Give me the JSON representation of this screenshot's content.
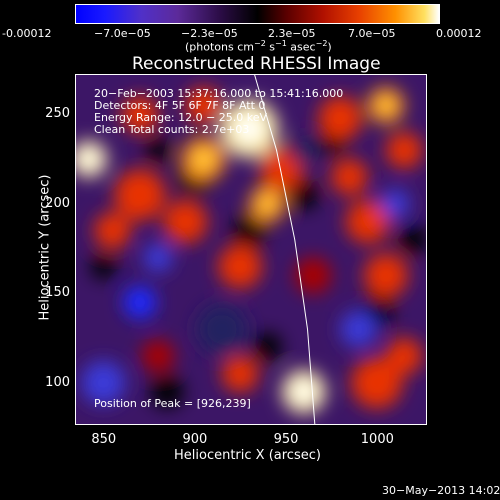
{
  "colorbar": {
    "ticks": [
      "-0.00012",
      "−7.0e−05",
      "−2.3e−05",
      "2.3e−05",
      "7.0e−05",
      "0.00012"
    ],
    "unit_prefix": "(photons cm",
    "unit_exp1": "−2",
    "unit_mid": " s",
    "unit_exp2": "−1",
    "unit_mid2": " asec",
    "unit_exp3": "−2",
    "unit_suffix": ")"
  },
  "chart_data": {
    "type": "heatmap",
    "title": "Reconstructed RHESSI Image",
    "xlabel": "Heliocentric X (arcsec)",
    "ylabel": "Heliocentric Y (arcsec)",
    "xlim": [
      835,
      1027
    ],
    "ylim": [
      77,
      272
    ],
    "x_ticks": [
      850,
      900,
      950,
      1000
    ],
    "y_ticks": [
      100,
      150,
      200,
      250
    ],
    "color_range": [
      -0.00012,
      0.00012
    ],
    "limb_curve": [
      [
        933,
        272
      ],
      [
        945,
        230
      ],
      [
        955,
        180
      ],
      [
        962,
        130
      ],
      [
        966,
        77
      ]
    ],
    "peak": [
      926,
      239
    ],
    "blobs": [
      {
        "x": 930,
        "y": 242,
        "r": 16,
        "v": 1.0
      },
      {
        "x": 842,
        "y": 225,
        "r": 10,
        "v": 0.95
      },
      {
        "x": 905,
        "y": 225,
        "r": 12,
        "v": 0.8
      },
      {
        "x": 870,
        "y": 205,
        "r": 14,
        "v": 0.55
      },
      {
        "x": 895,
        "y": 190,
        "r": 12,
        "v": 0.6
      },
      {
        "x": 948,
        "y": 220,
        "r": 12,
        "v": 0.55
      },
      {
        "x": 940,
        "y": 200,
        "r": 10,
        "v": 0.7
      },
      {
        "x": 980,
        "y": 248,
        "r": 12,
        "v": 0.6
      },
      {
        "x": 1005,
        "y": 255,
        "r": 10,
        "v": 0.75
      },
      {
        "x": 985,
        "y": 215,
        "r": 10,
        "v": 0.5
      },
      {
        "x": 995,
        "y": 190,
        "r": 12,
        "v": 0.55
      },
      {
        "x": 1015,
        "y": 230,
        "r": 10,
        "v": 0.5
      },
      {
        "x": 870,
        "y": 250,
        "r": 10,
        "v": 0.55
      },
      {
        "x": 905,
        "y": 255,
        "r": 10,
        "v": 0.5
      },
      {
        "x": 855,
        "y": 185,
        "r": 10,
        "v": 0.5
      },
      {
        "x": 925,
        "y": 165,
        "r": 12,
        "v": 0.5
      },
      {
        "x": 965,
        "y": 160,
        "r": 10,
        "v": 0.45
      },
      {
        "x": 1005,
        "y": 160,
        "r": 12,
        "v": 0.55
      },
      {
        "x": 960,
        "y": 95,
        "r": 12,
        "v": 1.0
      },
      {
        "x": 1000,
        "y": 100,
        "r": 14,
        "v": 0.6
      },
      {
        "x": 1015,
        "y": 115,
        "r": 10,
        "v": 0.6
      },
      {
        "x": 925,
        "y": 105,
        "r": 10,
        "v": 0.5
      },
      {
        "x": 880,
        "y": 115,
        "r": 9,
        "v": 0.4
      },
      {
        "x": 870,
        "y": 145,
        "r": 9,
        "v": -0.9
      },
      {
        "x": 880,
        "y": 170,
        "r": 8,
        "v": -0.6
      },
      {
        "x": 1010,
        "y": 200,
        "r": 8,
        "v": -0.6
      },
      {
        "x": 990,
        "y": 130,
        "r": 10,
        "v": -0.5
      },
      {
        "x": 850,
        "y": 100,
        "r": 12,
        "v": -0.5
      },
      {
        "x": 960,
        "y": 230,
        "r": 8,
        "v": -0.4
      },
      {
        "x": 915,
        "y": 130,
        "r": 14,
        "v": -0.35
      }
    ]
  },
  "annotations": {
    "time_range": "20−Feb−2003 15:37:16.000 to 15:41:16.000",
    "detectors": "Detectors: 4F 5F 6F 7F 8F Att 0",
    "energy": "Energy Range: 12.0 − 25.0 keV",
    "clean": "Clean    Total counts: 2.7e+03",
    "peak_label": "Position of Peak = [926,239]"
  },
  "footer": {
    "date": "30−May−2013 14:02"
  }
}
